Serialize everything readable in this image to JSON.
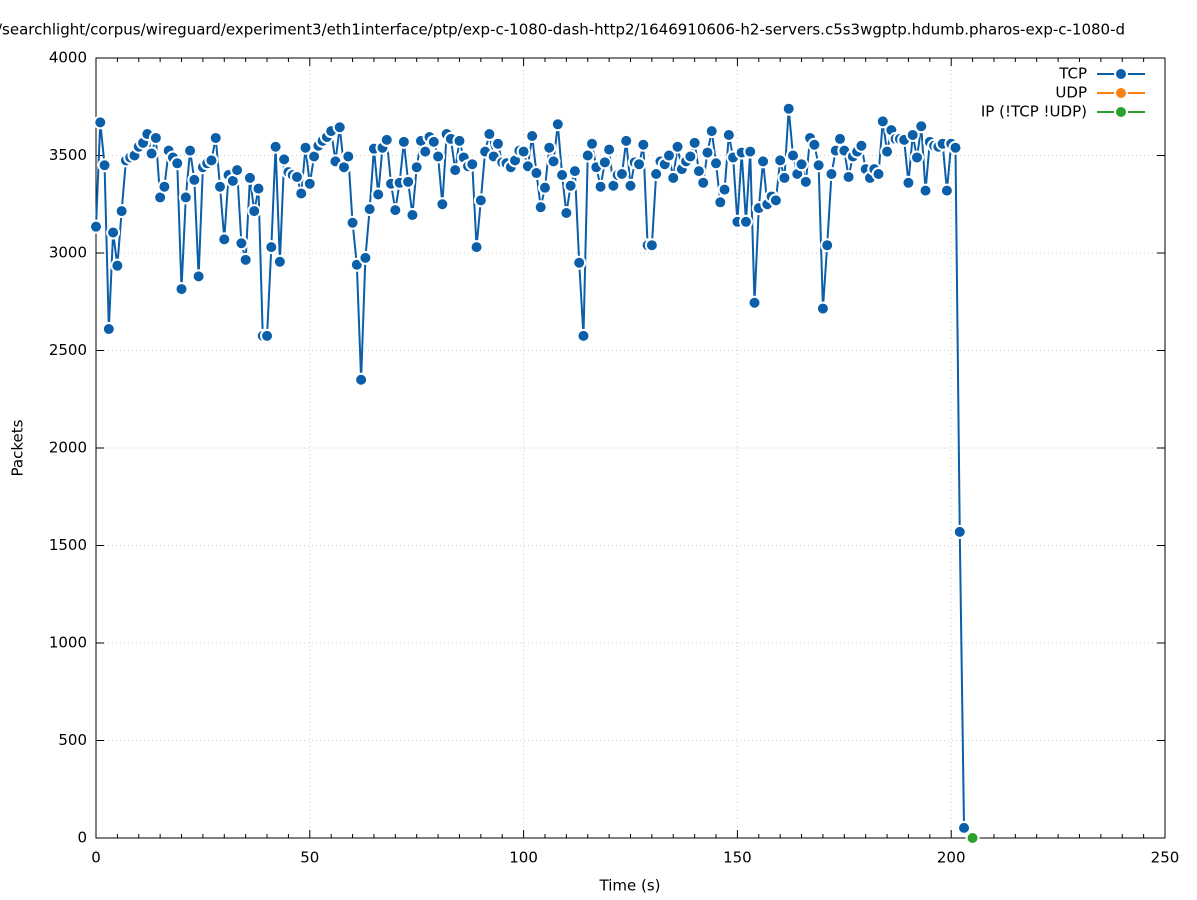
{
  "chart_data": {
    "type": "line",
    "title": "/searchlight/corpus/wireguard/experiment3/eth1interface/ptp/exp-c-1080-dash-http2/1646910606-h2-servers.c5s3wgptp.hdumb.pharos-exp-c-1080-d",
    "x_label": "Time (s)",
    "y_label": "Packets",
    "xlim": [
      0,
      250
    ],
    "ylim": [
      0,
      4000
    ],
    "xticks": [
      0,
      50,
      100,
      150,
      200,
      250
    ],
    "yticks": [
      0,
      500,
      1000,
      1500,
      2000,
      2500,
      3000,
      3500,
      4000
    ],
    "grid": true,
    "legend": "upper right",
    "series": [
      {
        "name": "TCP",
        "color": "#0b5ea8",
        "x": [
          0,
          1,
          2,
          3,
          4,
          5,
          6,
          7,
          8,
          9,
          10,
          11,
          12,
          13,
          14,
          15,
          16,
          17,
          18,
          19,
          20,
          21,
          22,
          23,
          24,
          25,
          26,
          27,
          28,
          29,
          30,
          31,
          32,
          33,
          34,
          35,
          36,
          37,
          38,
          39,
          40,
          41,
          42,
          43,
          44,
          45,
          46,
          47,
          48,
          49,
          50,
          51,
          52,
          53,
          54,
          55,
          56,
          57,
          58,
          59,
          60,
          61,
          62,
          63,
          64,
          65,
          66,
          67,
          68,
          69,
          70,
          71,
          72,
          73,
          74,
          75,
          76,
          77,
          78,
          79,
          80,
          81,
          82,
          83,
          84,
          85,
          86,
          87,
          88,
          89,
          90,
          91,
          92,
          93,
          94,
          95,
          96,
          97,
          98,
          99,
          100,
          101,
          102,
          103,
          104,
          105,
          106,
          107,
          108,
          109,
          110,
          111,
          112,
          113,
          114,
          115,
          116,
          117,
          118,
          119,
          120,
          121,
          122,
          123,
          124,
          125,
          126,
          127,
          128,
          129,
          130,
          131,
          132,
          133,
          134,
          135,
          136,
          137,
          138,
          139,
          140,
          141,
          142,
          143,
          144,
          145,
          146,
          147,
          148,
          149,
          150,
          151,
          152,
          153,
          154,
          155,
          156,
          157,
          158,
          159,
          160,
          161,
          162,
          163,
          164,
          165,
          166,
          167,
          168,
          169,
          170,
          171,
          172,
          173,
          174,
          175,
          176,
          177,
          178,
          179,
          180,
          181,
          182,
          183,
          184,
          185,
          186,
          187,
          188,
          189,
          190,
          191,
          192,
          193,
          194,
          195,
          196,
          197,
          198,
          199,
          200,
          201,
          202,
          203
        ],
        "values": [
          3135,
          3670,
          3450,
          2610,
          3105,
          2935,
          3215,
          3475,
          3490,
          3500,
          3545,
          3565,
          3610,
          3510,
          3590,
          3285,
          3340,
          3525,
          3490,
          3460,
          2815,
          3285,
          3525,
          3375,
          2880,
          3440,
          3460,
          3475,
          3590,
          3340,
          3070,
          3400,
          3370,
          3425,
          3050,
          2965,
          3385,
          3215,
          3330,
          2575,
          2575,
          3030,
          3545,
          2955,
          3480,
          3415,
          3400,
          3390,
          3305,
          3540,
          3355,
          3495,
          3550,
          3575,
          3595,
          3625,
          3470,
          3645,
          3440,
          3495,
          3155,
          2940,
          2350,
          2975,
          3225,
          3535,
          3300,
          3540,
          3580,
          3355,
          3220,
          3360,
          3570,
          3365,
          3195,
          3440,
          3575,
          3520,
          3595,
          3570,
          3495,
          3250,
          3610,
          3585,
          3425,
          3575,
          3490,
          3445,
          3455,
          3030,
          3270,
          3520,
          3610,
          3495,
          3560,
          3465,
          3460,
          3440,
          3475,
          3525,
          3520,
          3445,
          3600,
          3410,
          3235,
          3335,
          3540,
          3470,
          3660,
          3400,
          3205,
          3345,
          3420,
          2950,
          2575,
          3500,
          3560,
          3440,
          3340,
          3465,
          3530,
          3345,
          3400,
          3405,
          3575,
          3345,
          3465,
          3455,
          3555,
          3040,
          3040,
          3405,
          3470,
          3455,
          3500,
          3385,
          3545,
          3430,
          3470,
          3495,
          3565,
          3420,
          3360,
          3515,
          3625,
          3460,
          3260,
          3325,
          3605,
          3490,
          3160,
          3515,
          3160,
          3520,
          2745,
          3230,
          3470,
          3250,
          3290,
          3270,
          3475,
          3385,
          3740,
          3500,
          3405,
          3455,
          3365,
          3590,
          3555,
          3450,
          2715,
          3040,
          3405,
          3525,
          3585,
          3525,
          3390,
          3495,
          3520,
          3550,
          3430,
          3385,
          3430,
          3405,
          3675,
          3520,
          3630,
          3585,
          3585,
          3580,
          3360,
          3605,
          3490,
          3650,
          3320,
          3570,
          3550,
          3545,
          3560,
          3320,
          3560,
          3540,
          1570,
          52
        ]
      },
      {
        "name": "UDP",
        "color": "#ff7f0e",
        "x": [
          205
        ],
        "values": [
          0
        ]
      },
      {
        "name": "IP (!TCP  !UDP)",
        "color": "#2ca02c",
        "x": [
          205
        ],
        "values": [
          0
        ]
      }
    ]
  }
}
